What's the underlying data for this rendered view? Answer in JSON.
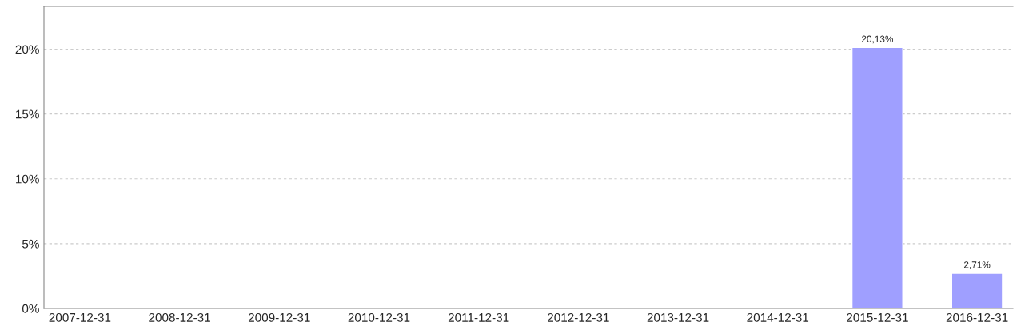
{
  "chart_data": {
    "type": "bar",
    "categories": [
      "2007-12-31",
      "2008-12-31",
      "2009-12-31",
      "2010-12-31",
      "2011-12-31",
      "2012-12-31",
      "2013-12-31",
      "2014-12-31",
      "2015-12-31",
      "2016-12-31"
    ],
    "values": [
      null,
      null,
      null,
      null,
      null,
      null,
      null,
      null,
      20.13,
      2.71
    ],
    "value_labels": [
      null,
      null,
      null,
      null,
      null,
      null,
      null,
      null,
      "20,13%",
      "2,71%"
    ],
    "color": "#9f9fff",
    "ylim": [
      0,
      23.3
    ],
    "yticks": [
      {
        "value": 0,
        "label": "0%"
      },
      {
        "value": 5,
        "label": "5%"
      },
      {
        "value": 10,
        "label": "10%"
      },
      {
        "value": 15,
        "label": "15%"
      },
      {
        "value": 20,
        "label": "20%"
      }
    ],
    "grid": "y"
  }
}
